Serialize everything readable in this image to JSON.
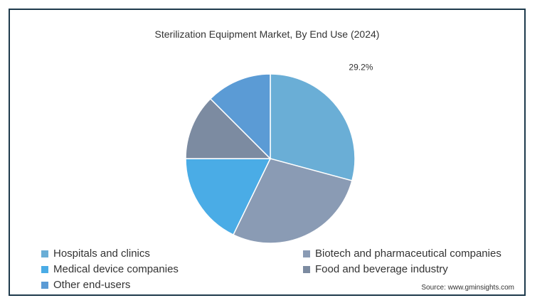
{
  "chart_data": {
    "type": "pie",
    "title": "Sterilization Equipment Market, By End Use (2024)",
    "slices": [
      {
        "label": "Hospitals and clinics",
        "value": 29.2,
        "color": "#6aaed6"
      },
      {
        "label": "Biotech and pharmaceutical companies",
        "value": 28.0,
        "color": "#8a9bb4"
      },
      {
        "label": "Medical device companies",
        "value": 17.8,
        "color": "#4aace6"
      },
      {
        "label": "Food and beverage industry",
        "value": 12.5,
        "color": "#7c8ba1"
      },
      {
        "label": "Other end-users",
        "value": 12.5,
        "color": "#5b9bd5"
      }
    ],
    "data_labels": [
      "29.2%",
      "",
      "",
      "",
      ""
    ],
    "legend_position": "bottom",
    "source": "Source: www.gminsights.com"
  }
}
